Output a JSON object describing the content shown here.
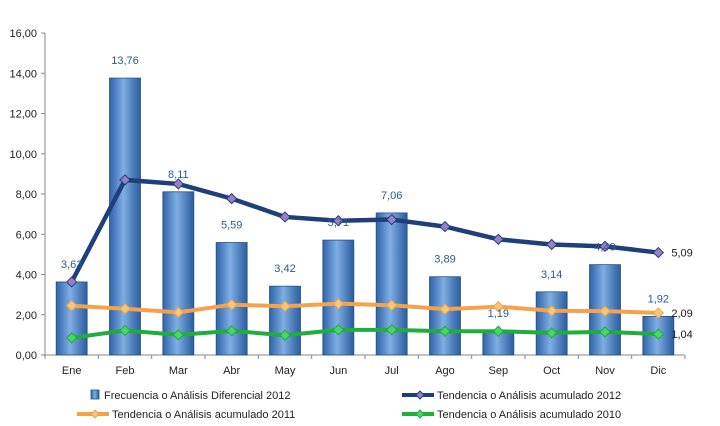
{
  "chart_data": {
    "type": "bar",
    "categories": [
      "Ene",
      "Feb",
      "Mar",
      "Abr",
      "May",
      "Jun",
      "Jul",
      "Ago",
      "Sep",
      "Oct",
      "Nov",
      "Dic"
    ],
    "y_ticks": [
      "0,00",
      "2,00",
      "4,00",
      "6,00",
      "8,00",
      "10,00",
      "12,00",
      "14,00",
      "16,00"
    ],
    "ylim": [
      0,
      16
    ],
    "grid": false,
    "legend_position": "bottom",
    "series": [
      {
        "name": "Frecuencia o Análisis Diferencial 2012",
        "kind": "bar",
        "color": "#4f86c6",
        "values": [
          3.63,
          13.76,
          8.11,
          5.59,
          3.42,
          5.71,
          7.06,
          3.89,
          1.19,
          3.14,
          4.49,
          1.92
        ],
        "labels": [
          "3,63",
          "13,76",
          "8,11",
          "5,59",
          "3,42",
          "5,71",
          "7,06",
          "3,89",
          "1,19",
          "3,14",
          "4,49",
          "1,92"
        ]
      },
      {
        "name": "Tendencia o Análisis acumulado 2012",
        "kind": "line",
        "color": "#1f3f7a",
        "marker_color": "#9b7fc6",
        "values": [
          3.63,
          8.7,
          8.5,
          7.77,
          6.86,
          6.67,
          6.73,
          6.38,
          5.75,
          5.49,
          5.4,
          5.09
        ],
        "end_label": "5,09"
      },
      {
        "name": "Tendencia o Análisis acumulado 2011",
        "kind": "line",
        "color": "#f5a24a",
        "marker_color": "#f7c878",
        "values": [
          2.45,
          2.3,
          2.12,
          2.5,
          2.42,
          2.55,
          2.47,
          2.28,
          2.4,
          2.2,
          2.18,
          2.09
        ],
        "end_label": "2,09"
      },
      {
        "name": "Tendencia o Análisis acumulado 2010",
        "kind": "line",
        "color": "#1fae3c",
        "marker_color": "#4cd36a",
        "values": [
          0.85,
          1.22,
          1.0,
          1.2,
          0.98,
          1.25,
          1.25,
          1.18,
          1.18,
          1.1,
          1.15,
          1.04
        ],
        "end_label": "1,04"
      }
    ]
  }
}
